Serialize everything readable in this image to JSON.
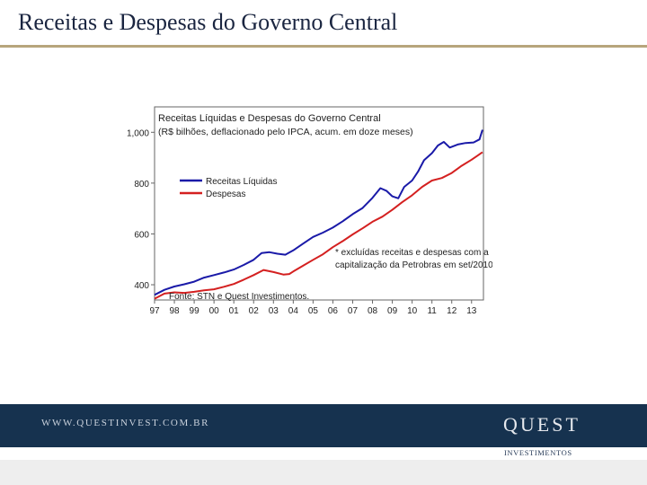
{
  "slide": {
    "title": "Receitas e Despesas do Governo Central"
  },
  "footer": {
    "url": "WWW.QUESTINVEST.COM.BR",
    "logo_main": "QUEST",
    "logo_sub": "INVESTIMENTOS",
    "background": "#16324f"
  },
  "chart_data": {
    "type": "line",
    "title": "Receitas Líquidas e Despesas do Governo Central",
    "subtitle": "(R$ bilhões, deflacionado pelo IPCA, acum. em doze meses)",
    "xlabel": "",
    "ylabel": "",
    "x_ticks": [
      "97",
      "98",
      "99",
      "00",
      "01",
      "02",
      "03",
      "04",
      "05",
      "06",
      "07",
      "08",
      "09",
      "10",
      "11",
      "12",
      "13"
    ],
    "y_ticks": [
      "400",
      "600",
      "800",
      "1,000"
    ],
    "xlim": [
      1997.0,
      2013.6
    ],
    "ylim": [
      340,
      1100
    ],
    "grid": false,
    "legend_position": "upper-left",
    "annotation": "* excluídas receitas e despesas com a capitalização da Petrobras em set/2010",
    "source": "Fonte: STN e Quest Investimentos.",
    "series": [
      {
        "name": "Receitas Líquidas",
        "color": "#1a1aa8",
        "points": [
          [
            1997.0,
            360
          ],
          [
            1997.5,
            380
          ],
          [
            1998.0,
            393
          ],
          [
            1998.5,
            402
          ],
          [
            1999.0,
            412
          ],
          [
            1999.5,
            428
          ],
          [
            2000.0,
            438
          ],
          [
            2000.5,
            448
          ],
          [
            2001.0,
            460
          ],
          [
            2001.5,
            478
          ],
          [
            2002.0,
            498
          ],
          [
            2002.4,
            525
          ],
          [
            2002.8,
            528
          ],
          [
            2003.2,
            522
          ],
          [
            2003.6,
            518
          ],
          [
            2004.0,
            535
          ],
          [
            2004.5,
            562
          ],
          [
            2005.0,
            588
          ],
          [
            2005.5,
            605
          ],
          [
            2006.0,
            625
          ],
          [
            2006.5,
            650
          ],
          [
            2007.0,
            678
          ],
          [
            2007.5,
            702
          ],
          [
            2008.0,
            742
          ],
          [
            2008.4,
            780
          ],
          [
            2008.7,
            770
          ],
          [
            2009.0,
            748
          ],
          [
            2009.3,
            740
          ],
          [
            2009.6,
            785
          ],
          [
            2010.0,
            810
          ],
          [
            2010.3,
            845
          ],
          [
            2010.6,
            890
          ],
          [
            2011.0,
            918
          ],
          [
            2011.3,
            948
          ],
          [
            2011.6,
            962
          ],
          [
            2011.9,
            940
          ],
          [
            2012.3,
            952
          ],
          [
            2012.7,
            958
          ],
          [
            2013.1,
            960
          ],
          [
            2013.4,
            972
          ],
          [
            2013.55,
            1010
          ]
        ]
      },
      {
        "name": "Despesas",
        "color": "#d42020",
        "points": [
          [
            1997.0,
            345
          ],
          [
            1997.5,
            365
          ],
          [
            1998.0,
            370
          ],
          [
            1998.5,
            368
          ],
          [
            1999.0,
            372
          ],
          [
            1999.5,
            378
          ],
          [
            2000.0,
            382
          ],
          [
            2000.5,
            392
          ],
          [
            2001.0,
            403
          ],
          [
            2001.5,
            420
          ],
          [
            2002.0,
            438
          ],
          [
            2002.5,
            458
          ],
          [
            2003.0,
            450
          ],
          [
            2003.5,
            440
          ],
          [
            2003.8,
            442
          ],
          [
            2004.0,
            452
          ],
          [
            2004.5,
            475
          ],
          [
            2005.0,
            498
          ],
          [
            2005.5,
            520
          ],
          [
            2006.0,
            548
          ],
          [
            2006.5,
            572
          ],
          [
            2007.0,
            598
          ],
          [
            2007.5,
            622
          ],
          [
            2008.0,
            648
          ],
          [
            2008.5,
            668
          ],
          [
            2009.0,
            695
          ],
          [
            2009.5,
            725
          ],
          [
            2010.0,
            752
          ],
          [
            2010.5,
            785
          ],
          [
            2011.0,
            810
          ],
          [
            2011.5,
            820
          ],
          [
            2012.0,
            840
          ],
          [
            2012.5,
            868
          ],
          [
            2013.0,
            892
          ],
          [
            2013.3,
            908
          ],
          [
            2013.55,
            922
          ]
        ]
      }
    ]
  }
}
